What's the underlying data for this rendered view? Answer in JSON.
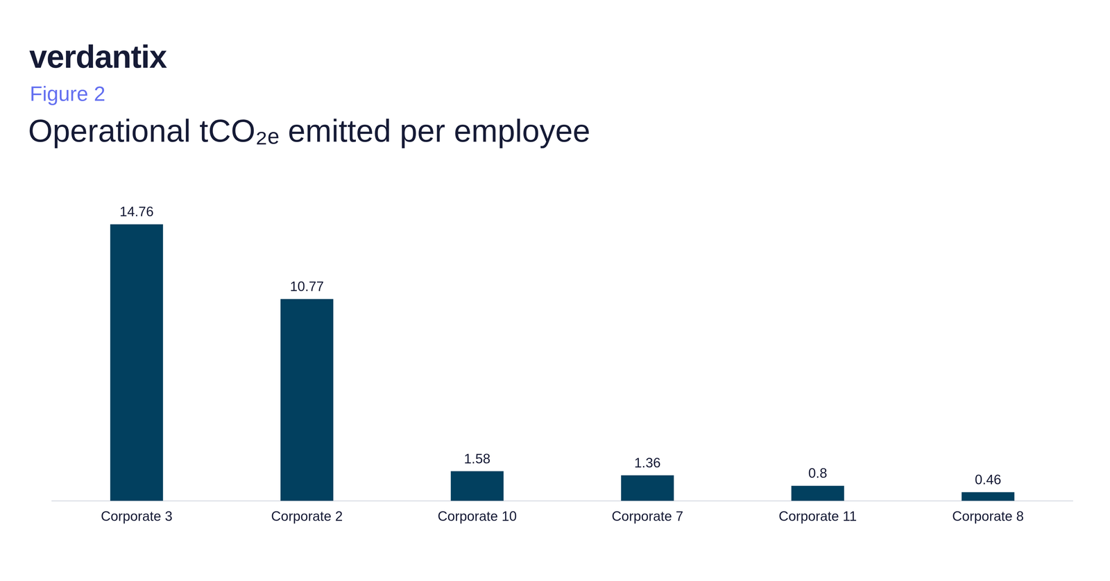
{
  "chart_data": {
    "type": "bar",
    "logo": "verdantix",
    "subtitle": "Figure 2",
    "title": "Operational tCO₂ₑ emitted per employee",
    "categories": [
      "Corporate 3",
      "Corporate 2",
      "Corporate 10",
      "Corporate 7",
      "Corporate 11",
      "Corporate 8"
    ],
    "values": [
      14.76,
      10.77,
      1.58,
      1.36,
      0.8,
      0.46
    ],
    "color": "#02405f",
    "ylim": [
      0,
      16
    ],
    "grid": false,
    "data_labels": true,
    "tick_labels": "x"
  }
}
